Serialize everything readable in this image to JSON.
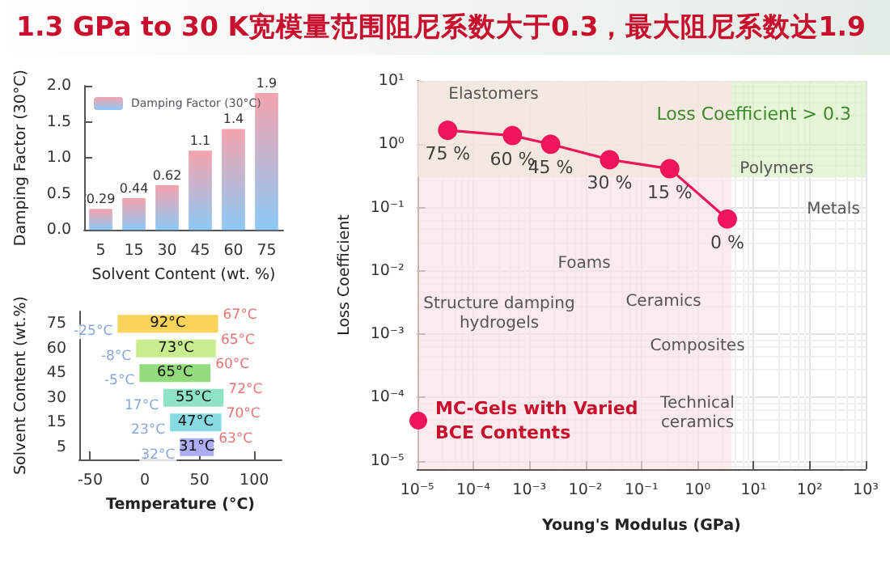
{
  "chart_data": [
    {
      "type": "bar",
      "title": "1.3 GPa to 30 K宽模量范围阻尼系数大于0.3，最大阻尼系数达1.9",
      "categories": [
        "5",
        "15",
        "30",
        "45",
        "60",
        "75"
      ],
      "series": [
        {
          "name": "Damping Factor (30°C)",
          "color": "#f5a3ad",
          "values": [
            0.29,
            0.44,
            0.62,
            1.1,
            1.4,
            1.9
          ]
        }
      ],
      "ylim": [
        0,
        2
      ],
      "yticks": [
        {
          "value": 0,
          "label": "0.0"
        },
        {
          "value": 0.5,
          "label": "0.5"
        },
        {
          "value": 1,
          "label": "1.0"
        },
        {
          "value": 1.5,
          "label": "1.5"
        },
        {
          "value": 2,
          "label": "2.0"
        }
      ],
      "xlabel": "Solvent Content (wt. %)",
      "ylabel": "Damping Factor (30°C)",
      "data_labels": true,
      "legend": "top left"
    },
    {
      "type": "bar",
      "orientation": "horizontal",
      "categories": [
        "75",
        "60",
        "45",
        "30",
        "15",
        "5"
      ],
      "values": [
        92,
        73,
        65,
        55,
        47,
        31
      ],
      "base": [
        -25,
        -8,
        -5,
        17,
        23,
        32
      ],
      "value_labels": [
        "92°C",
        "73°C",
        "65°C",
        "55°C",
        "47°C",
        "31°C"
      ],
      "colors": [
        "#f9d35a",
        "#c9ec8e",
        "#93db7c",
        "#8ee3c2",
        "#86dbe3",
        "#aeacf2"
      ],
      "xlim": [
        -60,
        125
      ],
      "xticks": [
        -50,
        0,
        50,
        100
      ],
      "xlabel": "Temperature (°C)",
      "ylabel": "Solvent Content (wt.%)",
      "annotations": [
        {
          "text": "-25°C",
          "x": -25,
          "y": "75"
        },
        {
          "text": "67°C",
          "x": 67,
          "y": "75"
        },
        {
          "text": "-8°C",
          "x": -8,
          "y": "60"
        },
        {
          "text": "65°C",
          "x": 65,
          "y": "60"
        },
        {
          "text": "-5°C",
          "x": -5,
          "y": "45"
        },
        {
          "text": "60°C",
          "x": 60,
          "y": "45"
        },
        {
          "text": "17°C",
          "x": 17,
          "y": "30"
        },
        {
          "text": "72°C",
          "x": 72,
          "y": "30"
        },
        {
          "text": "23°C",
          "x": 23,
          "y": "15"
        },
        {
          "text": "70°C",
          "x": 70,
          "y": "15"
        },
        {
          "text": "32°C",
          "x": 32,
          "y": "5"
        },
        {
          "text": "63°C",
          "x": 63,
          "y": "5"
        }
      ]
    },
    {
      "type": "scatter",
      "log": "xy",
      "grid": true,
      "marker": "circle",
      "line_style": "solid",
      "legend": "bottom left",
      "series": [
        {
          "name": "MC-Gels with Varied\nBCE Contents",
          "type": "line",
          "color": "#f0145a",
          "x": [
            3.5e-05,
            0.0005,
            0.0024,
            0.027,
            0.32,
            3.4
          ],
          "values": [
            1.66,
            1.37,
            1.0,
            0.57,
            0.41,
            0.066
          ]
        }
      ],
      "xlim": [
        1e-05,
        1000
      ],
      "ylim": [
        7.4e-06,
        10
      ],
      "xticks": [
        {
          "value": 1e-05,
          "label": "10⁻⁵"
        },
        {
          "value": 0.0001,
          "label": "10⁻⁴"
        },
        {
          "value": 0.001,
          "label": "10⁻³"
        },
        {
          "value": 0.01,
          "label": "10⁻²"
        },
        {
          "value": 0.1,
          "label": "10⁻¹"
        },
        {
          "value": 1,
          "label": "10⁰"
        },
        {
          "value": 10,
          "label": "10¹"
        },
        {
          "value": 100,
          "label": "10²"
        },
        {
          "value": 1000,
          "label": "10³"
        }
      ],
      "yticks": [
        {
          "value": 1e-05,
          "label": "10⁻⁵"
        },
        {
          "value": 0.0001,
          "label": "10⁻⁴"
        },
        {
          "value": 0.001,
          "label": "10⁻³"
        },
        {
          "value": 0.01,
          "label": "10⁻²"
        },
        {
          "value": 0.1,
          "label": "10⁻¹"
        },
        {
          "value": 1,
          "label": "10⁰"
        },
        {
          "value": 10,
          "label": "10¹"
        }
      ],
      "xlabel": "Young's Modulus (GPa)",
      "ylabel": "Loss Coefficient",
      "bands": [
        {
          "axis": "y",
          "from": 0.3,
          "to": 10,
          "label": "Loss Coefficient > 0.3",
          "color": "#dcefc6"
        },
        {
          "axis": "x",
          "from": 1e-05,
          "to": 4,
          "color": "#fbe3e6"
        }
      ],
      "annotations": [
        {
          "text": "75 %",
          "x": 3.5e-05,
          "y": 1.66
        },
        {
          "text": "60 %",
          "x": 0.0005,
          "y": 1.37
        },
        {
          "text": "45 %",
          "x": 0.0024,
          "y": 1.0
        },
        {
          "text": "30 %",
          "x": 0.027,
          "y": 0.57
        },
        {
          "text": "15 %",
          "x": 0.32,
          "y": 0.41
        },
        {
          "text": "0 %",
          "x": 3.4,
          "y": 0.066
        },
        "Elastomers",
        "Foams",
        "Polymers",
        "Metals",
        "Ceramics",
        "Structure damping\nhydrogels",
        "Composites",
        "Technical\nceramics"
      ]
    }
  ]
}
